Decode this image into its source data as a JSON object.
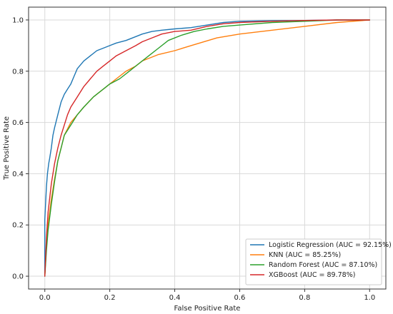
{
  "chart_data": {
    "type": "line",
    "title": "",
    "xlabel": "False Positive Rate",
    "ylabel": "True Positive Rate",
    "xlim": [
      -0.05,
      1.05
    ],
    "ylim": [
      -0.05,
      1.05
    ],
    "xticks": [
      0.0,
      0.2,
      0.4,
      0.6,
      0.8,
      1.0
    ],
    "yticks": [
      0.0,
      0.2,
      0.4,
      0.6,
      0.8,
      1.0
    ],
    "xtick_labels": [
      "0.0",
      "0.2",
      "0.4",
      "0.6",
      "0.8",
      "1.0"
    ],
    "ytick_labels": [
      "0.0",
      "0.2",
      "0.4",
      "0.6",
      "0.8",
      "1.0"
    ],
    "grid": true,
    "legend": {
      "placement": "lower-right"
    },
    "series": [
      {
        "name": "Logistic Regression (AUC = 92.15%)",
        "color": "#1f77b4",
        "x": [
          0,
          0,
          0.005,
          0.008,
          0.012,
          0.015,
          0.02,
          0.025,
          0.03,
          0.04,
          0.05,
          0.06,
          0.07,
          0.08,
          0.09,
          0.1,
          0.12,
          0.14,
          0.16,
          0.18,
          0.2,
          0.22,
          0.25,
          0.28,
          0.3,
          0.33,
          0.36,
          0.4,
          0.45,
          0.5,
          0.55,
          0.6,
          0.7,
          0.8,
          0.9,
          1.0
        ],
        "y": [
          0,
          0.22,
          0.35,
          0.4,
          0.44,
          0.46,
          0.5,
          0.55,
          0.58,
          0.63,
          0.68,
          0.71,
          0.73,
          0.75,
          0.78,
          0.81,
          0.84,
          0.86,
          0.88,
          0.89,
          0.9,
          0.91,
          0.92,
          0.935,
          0.945,
          0.955,
          0.96,
          0.965,
          0.97,
          0.98,
          0.99,
          0.995,
          0.997,
          0.998,
          1.0,
          1.0
        ]
      },
      {
        "name": "KNN (AUC = 85.25%)",
        "color": "#ff7f0e",
        "x": [
          0,
          0.005,
          0.01,
          0.02,
          0.03,
          0.04,
          0.05,
          0.06,
          0.08,
          0.1,
          0.12,
          0.15,
          0.18,
          0.2,
          0.22,
          0.25,
          0.28,
          0.3,
          0.35,
          0.4,
          0.45,
          0.53,
          0.6,
          0.7,
          0.8,
          0.9,
          1.0
        ],
        "y": [
          0,
          0.12,
          0.2,
          0.3,
          0.38,
          0.45,
          0.5,
          0.55,
          0.6,
          0.63,
          0.66,
          0.7,
          0.73,
          0.75,
          0.77,
          0.8,
          0.82,
          0.84,
          0.865,
          0.88,
          0.9,
          0.93,
          0.945,
          0.96,
          0.975,
          0.99,
          1.0
        ]
      },
      {
        "name": "Random Forest (AUC = 87.10%)",
        "color": "#2ca02c",
        "x": [
          0,
          0.005,
          0.01,
          0.02,
          0.03,
          0.04,
          0.05,
          0.06,
          0.08,
          0.1,
          0.12,
          0.15,
          0.18,
          0.2,
          0.23,
          0.26,
          0.29,
          0.32,
          0.35,
          0.38,
          0.42,
          0.46,
          0.5,
          0.55,
          0.6,
          0.7,
          0.8,
          0.9,
          1.0
        ],
        "y": [
          0,
          0.1,
          0.18,
          0.28,
          0.37,
          0.45,
          0.5,
          0.55,
          0.59,
          0.63,
          0.66,
          0.7,
          0.73,
          0.75,
          0.77,
          0.8,
          0.83,
          0.86,
          0.89,
          0.92,
          0.94,
          0.955,
          0.965,
          0.975,
          0.98,
          0.99,
          0.995,
          1.0,
          1.0
        ]
      },
      {
        "name": "XGBoost (AUC = 89.78%)",
        "color": "#d62728",
        "x": [
          0,
          0.005,
          0.01,
          0.02,
          0.03,
          0.04,
          0.05,
          0.06,
          0.07,
          0.08,
          0.1,
          0.12,
          0.14,
          0.16,
          0.18,
          0.2,
          0.22,
          0.25,
          0.28,
          0.3,
          0.33,
          0.36,
          0.4,
          0.45,
          0.5,
          0.55,
          0.6,
          0.7,
          0.8,
          0.9,
          1.0
        ],
        "y": [
          0,
          0.15,
          0.25,
          0.36,
          0.44,
          0.5,
          0.55,
          0.59,
          0.63,
          0.66,
          0.7,
          0.74,
          0.77,
          0.8,
          0.82,
          0.84,
          0.86,
          0.88,
          0.9,
          0.915,
          0.93,
          0.945,
          0.955,
          0.96,
          0.975,
          0.985,
          0.99,
          0.995,
          0.998,
          1.0,
          1.0
        ]
      }
    ]
  }
}
